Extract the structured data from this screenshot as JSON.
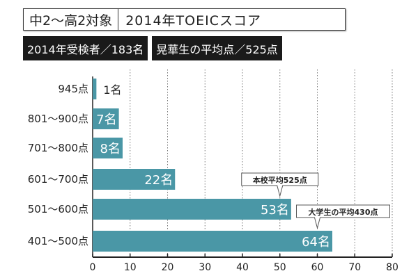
{
  "header": {
    "target": "中2〜高2対象",
    "title": "2014年TOEICスコア"
  },
  "badges": {
    "examinees": "2014年受検者／183名",
    "average": "晃華生の平均点／525点"
  },
  "chart_data": {
    "type": "bar",
    "orientation": "horizontal",
    "categories": [
      "945点",
      "801〜900点",
      "701〜800点",
      "601〜700点",
      "501〜600点",
      "401〜500点"
    ],
    "values": [
      1,
      7,
      8,
      22,
      53,
      64
    ],
    "value_labels": [
      "1名",
      "7名",
      "8名",
      "22名",
      "53名",
      "64名"
    ],
    "unit": "名",
    "xlim": [
      0,
      80
    ],
    "xticks": [
      0,
      10,
      20,
      30,
      40,
      50,
      60,
      70,
      80
    ],
    "grid": "vertical dotted",
    "bar_color": "#4a97a6",
    "annotations": [
      {
        "text": "本校平均525点",
        "category": "501〜600点",
        "x": 50
      },
      {
        "text": "大学生の平均430点",
        "category": "401〜500点",
        "x": 60
      }
    ]
  }
}
